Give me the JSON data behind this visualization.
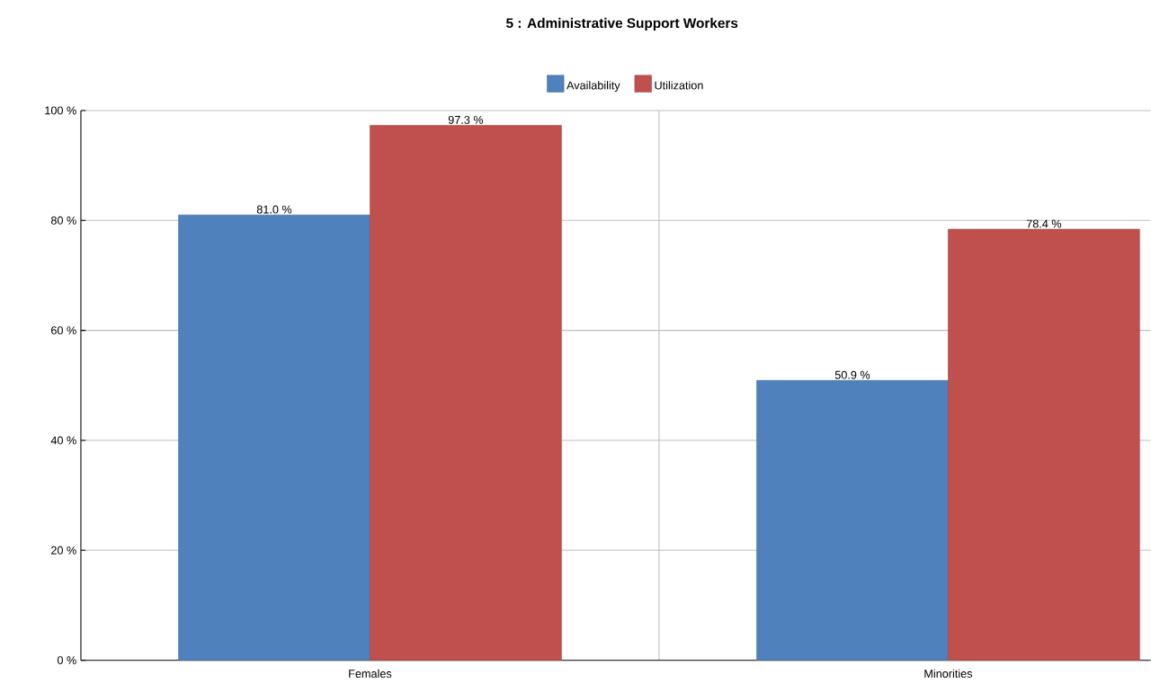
{
  "chart_data": {
    "type": "bar",
    "title": "5 : Administrative Support Workers",
    "categories": [
      "Females",
      "Minorities"
    ],
    "series": [
      {
        "name": "Availability",
        "color": "#4f81bd",
        "values": [
          81.0,
          50.9
        ],
        "value_labels": [
          "81.0 %",
          "50.9 %"
        ]
      },
      {
        "name": "Utilization",
        "color": "#c0504d",
        "values": [
          97.3,
          78.4
        ],
        "value_labels": [
          "97.3 %",
          "78.4 %"
        ]
      }
    ],
    "ylim": [
      0,
      100
    ],
    "yticks": [
      {
        "value": 0,
        "label": "0 %"
      },
      {
        "value": 20,
        "label": "20 %"
      },
      {
        "value": 40,
        "label": "40 %"
      },
      {
        "value": 60,
        "label": "60 %"
      },
      {
        "value": 80,
        "label": "80 %"
      },
      {
        "value": 100,
        "label": "100 %"
      }
    ],
    "grid": true,
    "legend": "top"
  }
}
